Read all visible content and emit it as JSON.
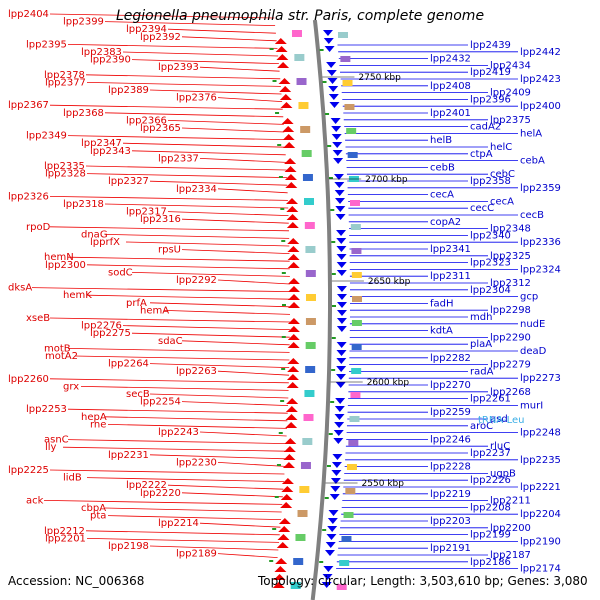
{
  "title": "Legionella pneumophila str. Paris, complete genome",
  "footer": {
    "accession_label": "Accession:",
    "accession": "NC_006368",
    "topology_label": "Topology:",
    "topology": "circular",
    "length_label": "Length:",
    "length": "3,503,610 bp",
    "genes_label": "Genes:",
    "genes": "3,080"
  },
  "positions": [
    "2750 kbp",
    "2700 kbp",
    "2650 kbp",
    "2600 kbp",
    "2550 kbp"
  ],
  "left_labels": [
    "lpp2404",
    "lpp2399",
    "lpp2394",
    "lpp2392",
    "lpp2395",
    "lpp2383",
    "lpp2390",
    "lpp2393",
    "lpp2378",
    "lpp2377",
    "lpp2389",
    "lpp2376",
    "lpp2367",
    "lpp2368",
    "lpp2366",
    "lpp2365",
    "lpp2349",
    "lpp2347",
    "lpp2343",
    "lpp2337",
    "lpp2335",
    "lpp2328",
    "lpp2327",
    "lpp2334",
    "lpp2326",
    "lpp2318",
    "lpp2317",
    "lpp2316",
    "rpoD",
    "dnaG",
    "lpprfX",
    "rpsU",
    "hemN",
    "lpp2300",
    "sodC",
    "lpp2292",
    "dksA",
    "hemK",
    "prfA",
    "hemA",
    "xseB",
    "lpp2276",
    "lpp2275",
    "sdaC",
    "motB",
    "motA2",
    "lpp2264",
    "lpp2263",
    "lpp2260",
    "grx",
    "secB",
    "lpp2254",
    "lpp2253",
    "hepA",
    "rne",
    "lpp2243",
    "asnC",
    "lly",
    "lpp2231",
    "lpp2230",
    "lpp2225",
    "lidB",
    "lpp2222",
    "lpp2220",
    "ack",
    "cbpA",
    "pta",
    "lpp2214",
    "lpp2212",
    "lpp2201",
    "lpp2198",
    "lpp2189"
  ],
  "right_labels": [
    "lpp2439",
    "lpp2442",
    "lpp2432",
    "lpp2434",
    "lpp2419",
    "lpp2423",
    "lpp2408",
    "lpp2409",
    "lpp2396",
    "lpp2400",
    "lpp2401",
    "lpp2375",
    "cadA2",
    "helA",
    "helB",
    "helC",
    "ctpA",
    "cebA",
    "cebB",
    "cebC",
    "lpp2358",
    "lpp2359",
    "cecA",
    "cecA",
    "cecC",
    "cecB",
    "copA2",
    "lpp2348",
    "lpp2340",
    "lpp2336",
    "lpp2341",
    "lpp2325",
    "lpp2323",
    "lpp2324",
    "lpp2311",
    "lpp2312",
    "lpp2304",
    "gcp",
    "fadH",
    "lpp2298",
    "mdh",
    "nudE",
    "kdtA",
    "lpp2290",
    "plaA",
    "deaD",
    "lpp2282",
    "lpp2279",
    "radA",
    "lpp2273",
    "lpp2270",
    "lpp2268",
    "lpp2261",
    "murI",
    "lpp2259",
    "asd",
    "aroC",
    "lpp2248",
    "lpp2246",
    "rluC",
    "lpp2237",
    "lpp2235",
    "lpp2228",
    "ugpB",
    "lpp2226",
    "lpp2221",
    "lpp2219",
    "lpp2211",
    "lpp2208",
    "lpp2204",
    "lpp2203",
    "lpp2200",
    "lpp2199",
    "lpp2190",
    "lpp2191",
    "lpp2187",
    "lpp2186",
    "lpp2174"
  ],
  "trna_label": "tRNA-Leu",
  "colors": {
    "forward": "#ee0000",
    "reverse": "#0000ee",
    "backbone": "#808080",
    "trna": "#3aaee6"
  }
}
